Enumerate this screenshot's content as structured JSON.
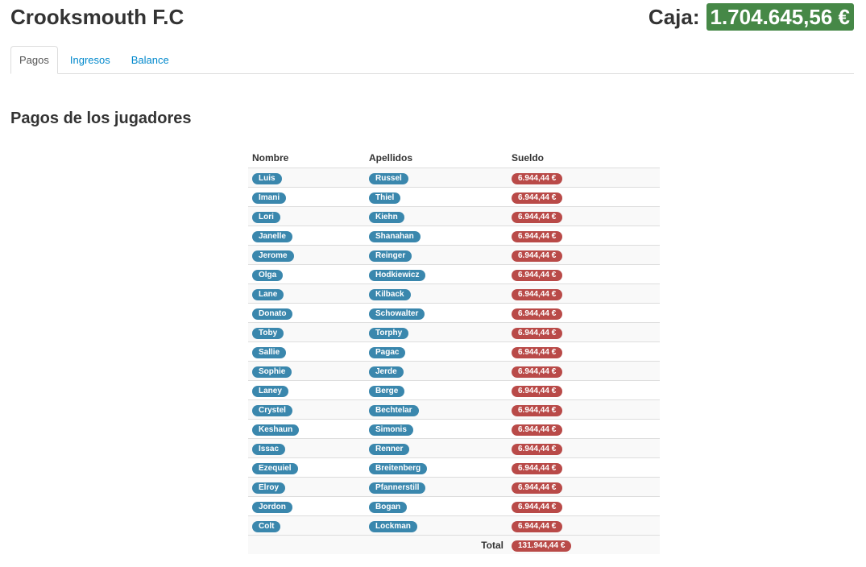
{
  "header": {
    "club_name": "Crooksmouth F.C",
    "caja_label": "Caja:",
    "caja_amount": "1.704.645,56 €"
  },
  "tabs": [
    {
      "label": "Pagos",
      "active": true
    },
    {
      "label": "Ingresos",
      "active": false
    },
    {
      "label": "Balance",
      "active": false
    }
  ],
  "section_title": "Pagos de los jugadores",
  "table": {
    "columns": [
      "Nombre",
      "Apellidos",
      "Sueldo"
    ],
    "rows": [
      {
        "nombre": "Luis",
        "apellidos": "Russel",
        "sueldo": "6.944,44 €"
      },
      {
        "nombre": "Imani",
        "apellidos": "Thiel",
        "sueldo": "6.944,44 €"
      },
      {
        "nombre": "Lori",
        "apellidos": "Kiehn",
        "sueldo": "6.944,44 €"
      },
      {
        "nombre": "Janelle",
        "apellidos": "Shanahan",
        "sueldo": "6.944,44 €"
      },
      {
        "nombre": "Jerome",
        "apellidos": "Reinger",
        "sueldo": "6.944,44 €"
      },
      {
        "nombre": "Olga",
        "apellidos": "Hodkiewicz",
        "sueldo": "6.944,44 €"
      },
      {
        "nombre": "Lane",
        "apellidos": "Kilback",
        "sueldo": "6.944,44 €"
      },
      {
        "nombre": "Donato",
        "apellidos": "Schowalter",
        "sueldo": "6.944,44 €"
      },
      {
        "nombre": "Toby",
        "apellidos": "Torphy",
        "sueldo": "6.944,44 €"
      },
      {
        "nombre": "Sallie",
        "apellidos": "Pagac",
        "sueldo": "6.944,44 €"
      },
      {
        "nombre": "Sophie",
        "apellidos": "Jerde",
        "sueldo": "6.944,44 €"
      },
      {
        "nombre": "Laney",
        "apellidos": "Berge",
        "sueldo": "6.944,44 €"
      },
      {
        "nombre": "Crystel",
        "apellidos": "Bechtelar",
        "sueldo": "6.944,44 €"
      },
      {
        "nombre": "Keshaun",
        "apellidos": "Simonis",
        "sueldo": "6.944,44 €"
      },
      {
        "nombre": "Issac",
        "apellidos": "Renner",
        "sueldo": "6.944,44 €"
      },
      {
        "nombre": "Ezequiel",
        "apellidos": "Breitenberg",
        "sueldo": "6.944,44 €"
      },
      {
        "nombre": "Elroy",
        "apellidos": "Pfannerstill",
        "sueldo": "6.944,44 €"
      },
      {
        "nombre": "Jordon",
        "apellidos": "Bogan",
        "sueldo": "6.944,44 €"
      },
      {
        "nombre": "Colt",
        "apellidos": "Lockman",
        "sueldo": "6.944,44 €"
      }
    ],
    "total_label": "Total",
    "total_value": "131.944,44 €"
  },
  "colors": {
    "caja_green": "#468847",
    "badge_info": "#3a87ad",
    "badge_important": "#b94a48",
    "link_blue": "#0088cc"
  }
}
